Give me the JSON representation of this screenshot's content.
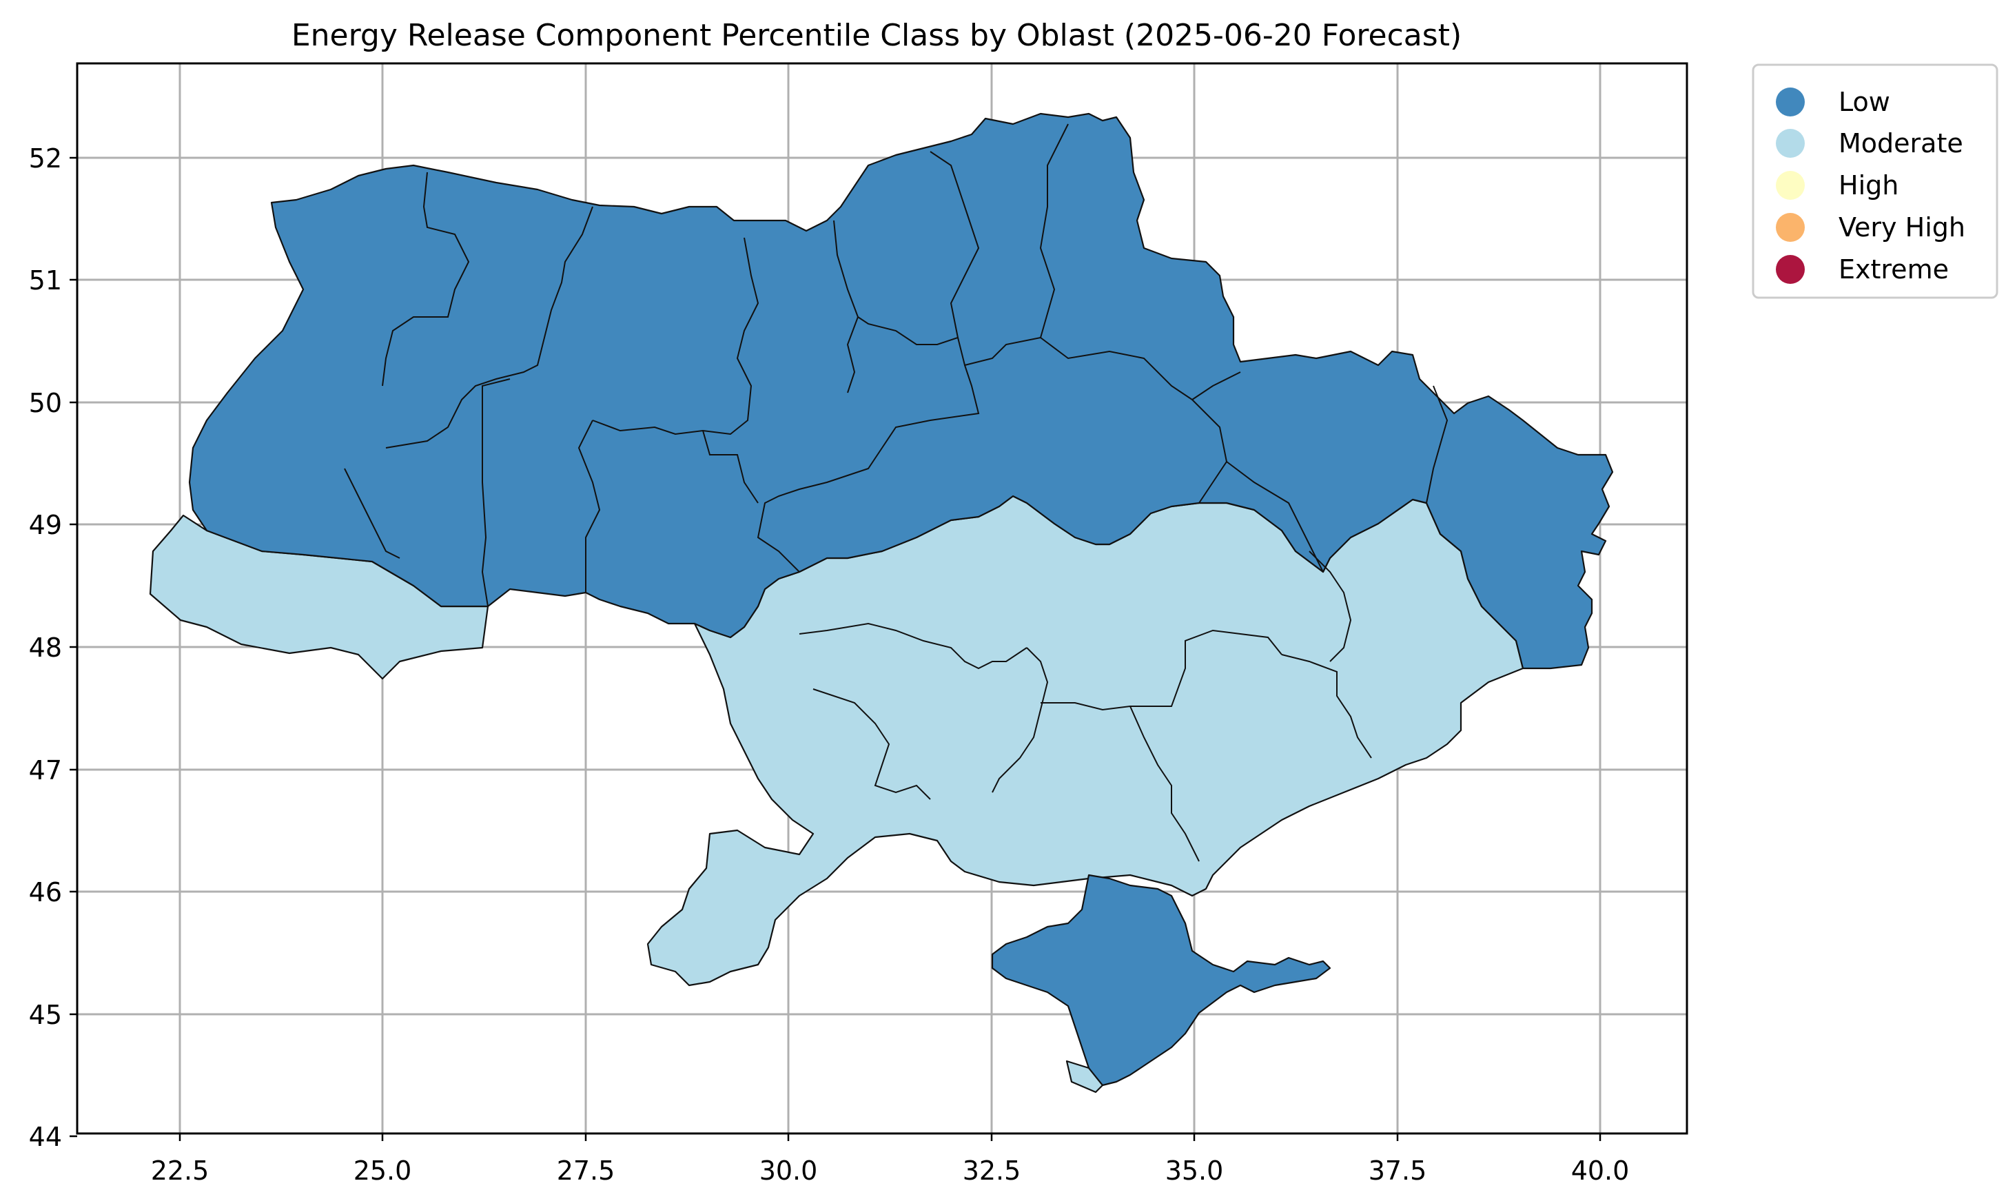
{
  "title": "Energy Release Component Percentile Class by Oblast (2025-06-20 Forecast)",
  "axes": {
    "xlim": [
      21.3,
      41.0
    ],
    "ylim": [
      44.0,
      52.8
    ],
    "x_ticks": [
      "22.5",
      "25.0",
      "27.5",
      "30.0",
      "32.5",
      "35.0",
      "37.5",
      "40.0"
    ],
    "y_ticks": [
      "44",
      "45",
      "46",
      "47",
      "48",
      "49",
      "50",
      "51",
      "52"
    ],
    "grid": true
  },
  "legend": {
    "placement": "outside-top-right",
    "items": [
      {
        "label": "Low",
        "color": "#4188bd"
      },
      {
        "label": "Moderate",
        "color": "#b3dbe9"
      },
      {
        "label": "High",
        "color": "#fefdc2"
      },
      {
        "label": "Very High",
        "color": "#fbb46b"
      },
      {
        "label": "Extreme",
        "color": "#ac153f"
      }
    ]
  },
  "map": {
    "class_colors": {
      "Low": "#4188bd",
      "Moderate": "#b3dbe9"
    },
    "border_color": "#111111"
  }
}
